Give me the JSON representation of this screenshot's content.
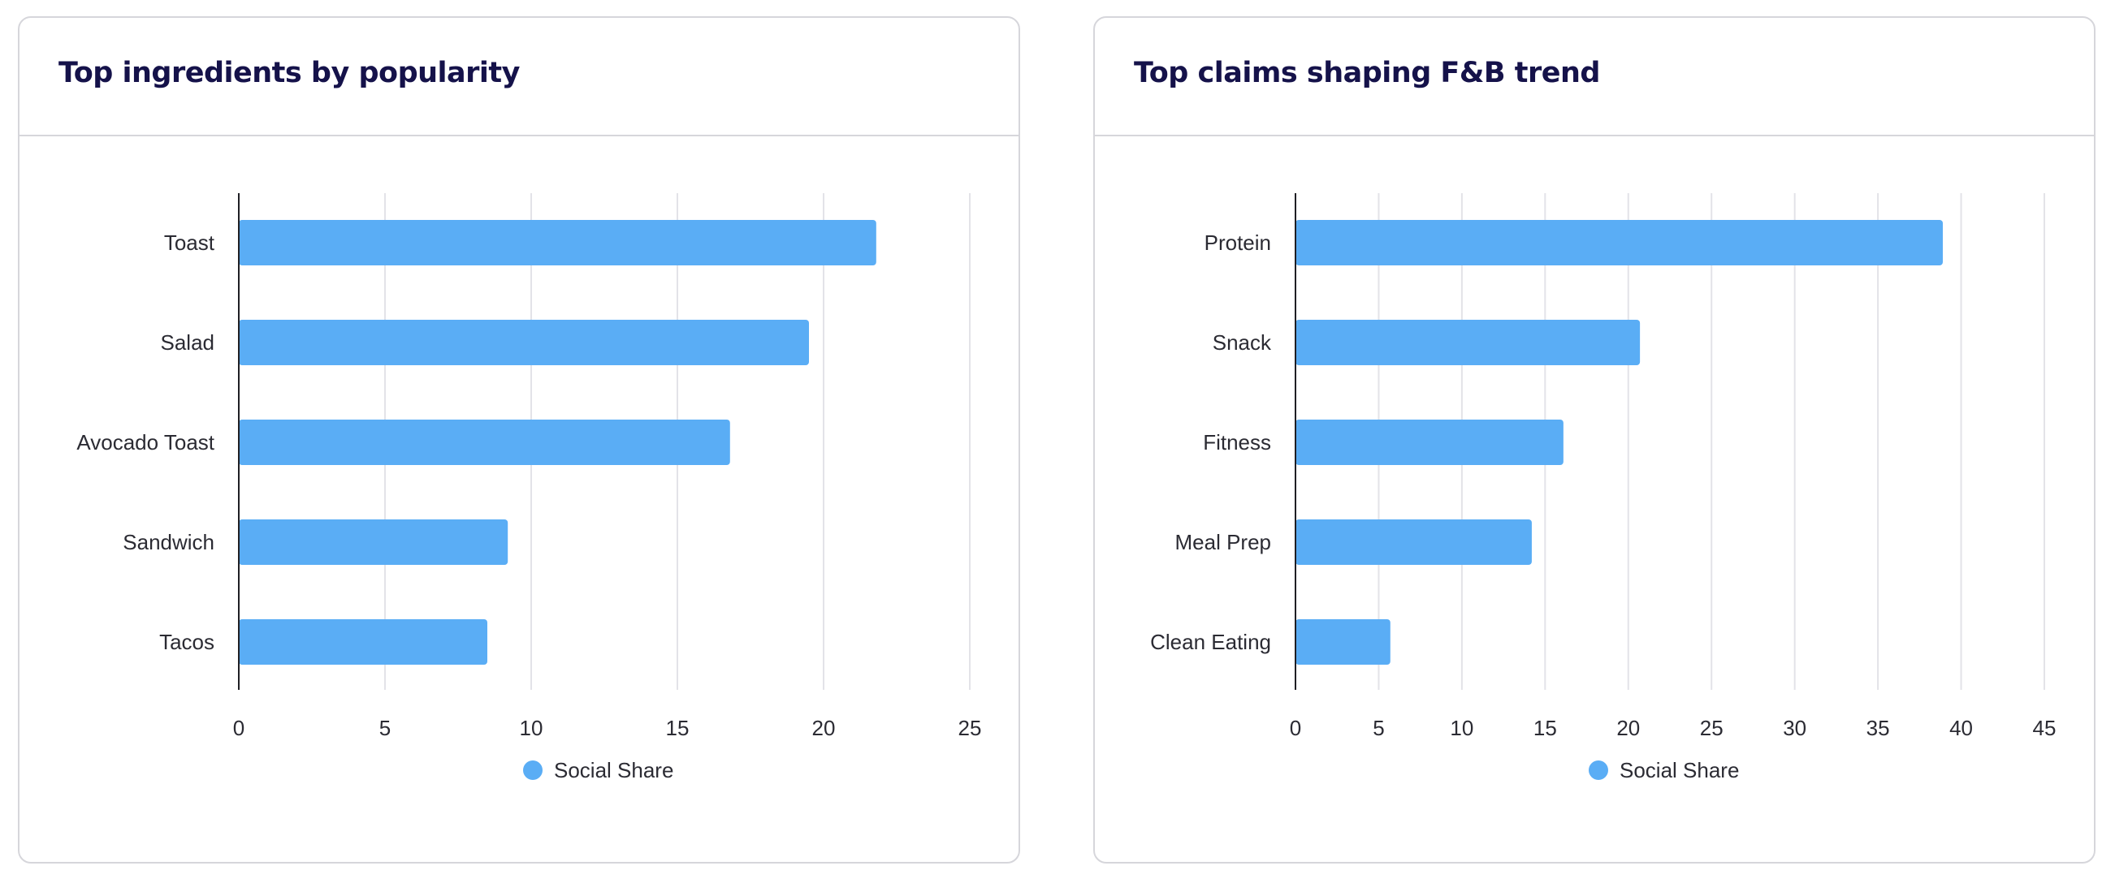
{
  "panels": [
    {
      "title": "Top ingredients by popularity",
      "chart_data": {
        "type": "bar",
        "orientation": "horizontal",
        "title": "Top ingredients by popularity",
        "categories": [
          "Toast",
          "Salad",
          "Avocado Toast",
          "Sandwich",
          "Tacos"
        ],
        "series": [
          {
            "name": "Social Share",
            "values": [
              21.8,
              19.5,
              16.8,
              9.2,
              8.5
            ]
          }
        ],
        "xlim": [
          0,
          25
        ],
        "xticks": [
          0,
          5,
          10,
          15,
          20,
          25
        ],
        "grid": true,
        "legend": "bottom-center",
        "bar_color": "#5aadf5"
      }
    },
    {
      "title": "Top claims shaping F&B trend",
      "chart_data": {
        "type": "bar",
        "orientation": "horizontal",
        "title": "Top claims shaping F&B trend",
        "categories": [
          "Protein",
          "Snack",
          "Fitness",
          "Meal Prep",
          "Clean Eating"
        ],
        "series": [
          {
            "name": "Social Share",
            "values": [
              38.9,
              20.7,
              16.1,
              14.2,
              5.7
            ]
          }
        ],
        "xlim": [
          0,
          45
        ],
        "xticks": [
          0,
          5,
          10,
          15,
          20,
          25,
          30,
          35,
          40,
          45
        ],
        "grid": true,
        "legend": "bottom-center",
        "bar_color": "#5aadf5"
      }
    }
  ]
}
